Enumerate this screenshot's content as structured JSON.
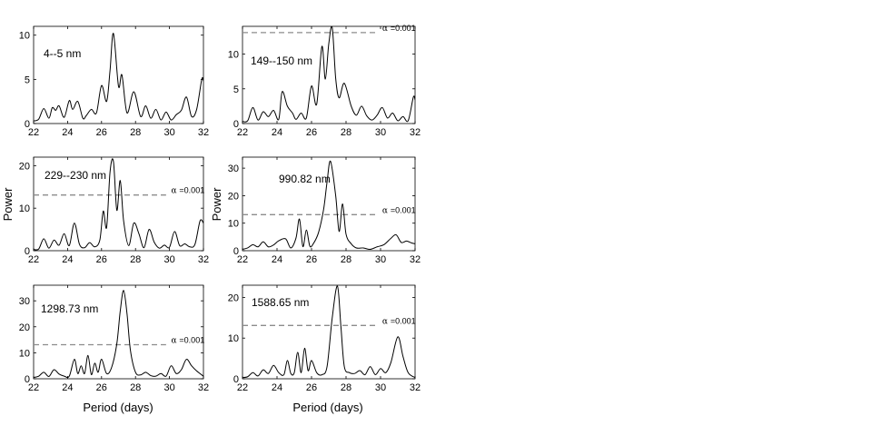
{
  "chart_data": [
    {
      "type": "line",
      "panel": 1,
      "label": "4--5 nm",
      "xlim": [
        22,
        32
      ],
      "ylim": [
        0,
        11
      ],
      "xticks": [
        22,
        24,
        26,
        28,
        30,
        32
      ],
      "yticks": [
        0,
        5,
        10
      ],
      "threshold": null,
      "series": [
        {
          "x": [
            22,
            22.3,
            22.6,
            22.9,
            23.1,
            23.3,
            23.5,
            23.8,
            24.1,
            24.3,
            24.6,
            24.9,
            25.1,
            25.4,
            25.7,
            26.0,
            26.3,
            26.5,
            26.7,
            27.0,
            27.2,
            27.5,
            27.9,
            28.3,
            28.6,
            28.9,
            29.2,
            29.5,
            29.8,
            30.1,
            30.4,
            30.7,
            31.0,
            31.3,
            31.6,
            31.9,
            32
          ],
          "y": [
            0.3,
            0.5,
            1.7,
            0.6,
            1.8,
            1.5,
            2.0,
            0.7,
            2.6,
            1.6,
            2.5,
            0.6,
            0.9,
            1.6,
            1.2,
            4.3,
            2.5,
            6.0,
            10.2,
            4.2,
            5.5,
            1.2,
            3.6,
            0.8,
            2.0,
            0.6,
            1.6,
            0.4,
            1.3,
            0.4,
            1.0,
            1.5,
            3.0,
            0.8,
            1.6,
            5.0,
            4.8
          ]
        }
      ]
    },
    {
      "type": "line",
      "panel": 2,
      "label": "149--150 nm",
      "xlim": [
        22,
        32
      ],
      "ylim": [
        0,
        14
      ],
      "xticks": [
        22,
        24,
        26,
        28,
        30,
        32
      ],
      "yticks": [
        0,
        5,
        10
      ],
      "threshold": {
        "value": 13.1,
        "alpha_symbol": "α",
        "alpha_value": "=0.001"
      },
      "series": [
        {
          "x": [
            22,
            22.3,
            22.6,
            22.9,
            23.2,
            23.5,
            23.8,
            24.1,
            24.3,
            24.6,
            24.9,
            25.1,
            25.4,
            25.7,
            26.0,
            26.3,
            26.6,
            26.8,
            27.0,
            27.2,
            27.4,
            27.6,
            27.9,
            28.3,
            28.6,
            28.9,
            29.2,
            29.5,
            29.8,
            30.1,
            30.4,
            30.7,
            31.0,
            31.3,
            31.6,
            31.9,
            32
          ],
          "y": [
            0.3,
            0.4,
            2.3,
            0.5,
            1.7,
            1.0,
            1.9,
            0.6,
            4.6,
            2.5,
            1.5,
            0.6,
            1.5,
            0.8,
            5.4,
            2.8,
            11.1,
            6.4,
            11.5,
            13.8,
            6.5,
            3.7,
            5.8,
            2.5,
            1.2,
            2.5,
            1.1,
            0.5,
            1.2,
            2.3,
            0.8,
            1.5,
            0.4,
            1.0,
            0.4,
            3.8,
            3.4
          ]
        }
      ]
    },
    {
      "type": "line",
      "panel": 3,
      "label": "229--230 nm",
      "xlim": [
        22,
        32
      ],
      "ylim": [
        0,
        22
      ],
      "xticks": [
        22,
        24,
        26,
        28,
        30,
        32
      ],
      "yticks": [
        0,
        10,
        20
      ],
      "threshold": {
        "value": 13.1,
        "alpha_symbol": "α",
        "alpha_value": "=0.001"
      },
      "series": [
        {
          "x": [
            22,
            22.3,
            22.6,
            22.9,
            23.2,
            23.5,
            23.8,
            24.1,
            24.4,
            24.7,
            25.0,
            25.3,
            25.6,
            25.9,
            26.1,
            26.3,
            26.5,
            26.7,
            26.9,
            27.1,
            27.3,
            27.6,
            27.9,
            28.2,
            28.5,
            28.8,
            29.1,
            29.4,
            29.7,
            30.0,
            30.3,
            30.6,
            30.9,
            31.2,
            31.5,
            31.8,
            32
          ],
          "y": [
            0.3,
            0.4,
            2.8,
            0.6,
            2.5,
            1.3,
            4.0,
            1.2,
            6.5,
            1.5,
            0.7,
            1.9,
            0.9,
            2.5,
            9.3,
            5.5,
            18.5,
            21.0,
            9.5,
            16.5,
            7.0,
            1.2,
            6.5,
            4.0,
            0.7,
            5.0,
            2.0,
            0.6,
            1.3,
            0.8,
            4.5,
            1.2,
            1.6,
            0.9,
            1.5,
            7.0,
            6.5
          ]
        }
      ]
    },
    {
      "type": "line",
      "panel": 4,
      "label": "990.82 nm",
      "xlim": [
        22,
        32
      ],
      "ylim": [
        0,
        34
      ],
      "xticks": [
        22,
        24,
        26,
        28,
        30,
        32
      ],
      "yticks": [
        0,
        10,
        20,
        30
      ],
      "threshold": {
        "value": 13.1,
        "alpha_symbol": "α",
        "alpha_value": "=0.001"
      },
      "series": [
        {
          "x": [
            22,
            22.3,
            22.6,
            22.9,
            23.2,
            23.5,
            23.8,
            24.1,
            24.5,
            24.8,
            25.1,
            25.3,
            25.5,
            25.7,
            25.9,
            26.1,
            26.4,
            26.7,
            26.9,
            27.1,
            27.4,
            27.6,
            27.8,
            28.0,
            28.3,
            28.6,
            29.0,
            29.4,
            29.8,
            30.2,
            30.6,
            30.9,
            31.2,
            31.5,
            31.8,
            32
          ],
          "y": [
            0.5,
            1.0,
            2.2,
            1.4,
            3.2,
            1.4,
            2.1,
            3.6,
            4.3,
            1.0,
            4.6,
            11.5,
            1.5,
            7.5,
            1.7,
            2.5,
            6.5,
            15.0,
            25.0,
            32.5,
            20.0,
            7.0,
            17.0,
            6.0,
            2.5,
            1.0,
            1.0,
            0.5,
            1.4,
            2.2,
            4.5,
            5.8,
            3.0,
            3.5,
            2.8,
            2.5
          ]
        }
      ]
    },
    {
      "type": "line",
      "panel": 5,
      "label": "1298.73 nm",
      "xlim": [
        22,
        32
      ],
      "ylim": [
        0,
        36
      ],
      "xticks": [
        22,
        24,
        26,
        28,
        30,
        32
      ],
      "yticks": [
        0,
        10,
        20,
        30
      ],
      "threshold": {
        "value": 13.1,
        "alpha_symbol": "α",
        "alpha_value": "=0.001"
      },
      "series": [
        {
          "x": [
            22,
            22.3,
            22.6,
            22.9,
            23.2,
            23.5,
            23.8,
            24.1,
            24.4,
            24.6,
            24.8,
            25.0,
            25.2,
            25.4,
            25.6,
            25.8,
            26.0,
            26.3,
            26.6,
            26.9,
            27.1,
            27.3,
            27.5,
            27.7,
            28.0,
            28.3,
            28.6,
            28.9,
            29.2,
            29.5,
            29.8,
            30.1,
            30.4,
            30.7,
            31.0,
            31.3,
            31.6,
            32
          ],
          "y": [
            0.5,
            1.0,
            2.5,
            0.9,
            3.5,
            1.8,
            1.0,
            1.0,
            7.5,
            2.0,
            5.0,
            2.0,
            9.0,
            1.6,
            6.0,
            2.5,
            7.5,
            2.0,
            4.5,
            13.5,
            26.0,
            34.0,
            25.0,
            11.0,
            2.5,
            1.5,
            2.5,
            1.2,
            1.0,
            2.0,
            1.0,
            5.0,
            2.0,
            3.5,
            7.5,
            5.0,
            3.0,
            1.0
          ]
        }
      ]
    },
    {
      "type": "line",
      "panel": 6,
      "label": "1588.65 nm",
      "xlim": [
        22,
        32
      ],
      "ylim": [
        0,
        23
      ],
      "xticks": [
        22,
        24,
        26,
        28,
        30,
        32
      ],
      "yticks": [
        0,
        10,
        20
      ],
      "threshold": {
        "value": 13.1,
        "alpha_symbol": "α",
        "alpha_value": "=0.001"
      },
      "series": [
        {
          "x": [
            22,
            22.3,
            22.6,
            22.9,
            23.2,
            23.5,
            23.8,
            24.1,
            24.4,
            24.6,
            24.8,
            25.0,
            25.2,
            25.4,
            25.6,
            25.8,
            26.0,
            26.3,
            26.6,
            26.9,
            27.2,
            27.5,
            27.7,
            27.9,
            28.2,
            28.5,
            28.8,
            29.1,
            29.4,
            29.7,
            30.0,
            30.3,
            30.6,
            31.0,
            31.3,
            31.6,
            32
          ],
          "y": [
            0.3,
            0.5,
            1.5,
            0.7,
            2.2,
            1.3,
            3.3,
            1.5,
            1.0,
            4.5,
            1.3,
            1.5,
            6.5,
            1.5,
            7.5,
            2.0,
            4.5,
            1.5,
            1.0,
            3.0,
            15.0,
            22.8,
            13.0,
            3.0,
            1.5,
            1.3,
            2.0,
            1.0,
            3.0,
            1.0,
            2.5,
            1.5,
            4.0,
            10.3,
            5.5,
            1.5,
            0.3
          ]
        }
      ]
    }
  ],
  "ylabel": "Power",
  "xlabel": "Period (days)"
}
